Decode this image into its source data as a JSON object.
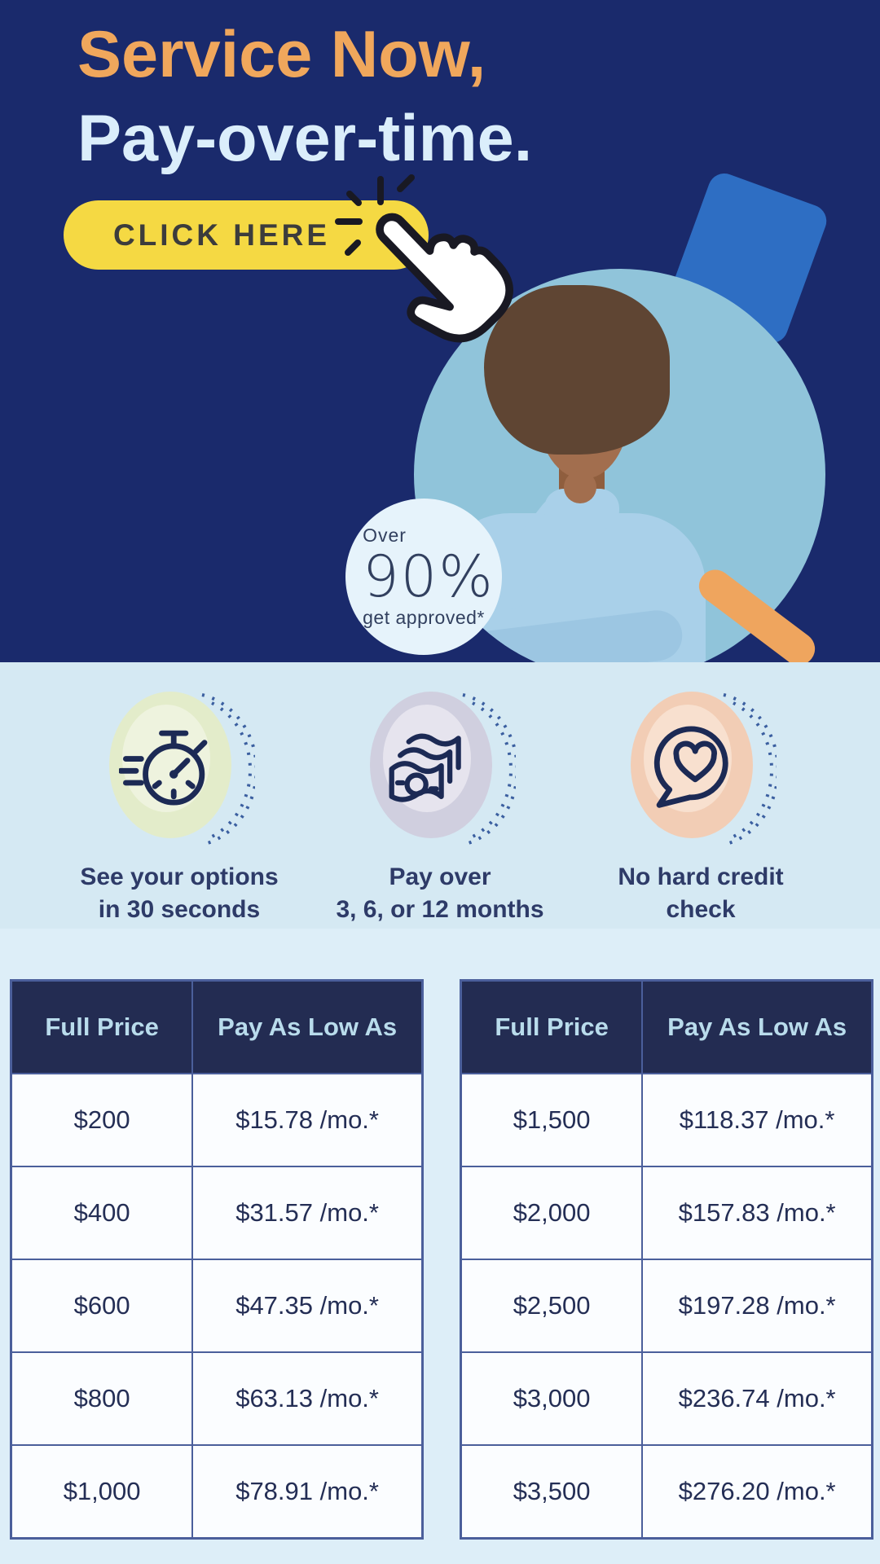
{
  "hero": {
    "title_line1": "Service Now,",
    "title_line2": "Pay-over-time.",
    "cta_label": "CLICK HERE",
    "badge": {
      "line1": "Over",
      "value": "90%",
      "line2": "get approved*"
    }
  },
  "features": [
    {
      "icon": "stopwatch-icon",
      "line1": "See your options",
      "line2": "in 30 seconds"
    },
    {
      "icon": "banknotes-icon",
      "line1": "Pay over",
      "line2": "3, 6, or 12 months"
    },
    {
      "icon": "heart-speech-bubble-icon",
      "line1": "No hard credit",
      "line2": "check"
    }
  ],
  "pricing_tables": {
    "left": {
      "headers": [
        "Full Price",
        "Pay As Low As"
      ],
      "rows": [
        [
          "$200",
          "$15.78 /mo.*"
        ],
        [
          "$400",
          "$31.57 /mo.*"
        ],
        [
          "$600",
          "$47.35 /mo.*"
        ],
        [
          "$800",
          "$63.13 /mo.*"
        ],
        [
          "$1,000",
          "$78.91 /mo.*"
        ]
      ]
    },
    "right": {
      "headers": [
        "Full Price",
        "Pay As Low As"
      ],
      "rows": [
        [
          "$1,500",
          "$118.37 /mo.*"
        ],
        [
          "$2,000",
          "$157.83 /mo.*"
        ],
        [
          "$2,500",
          "$197.28 /mo.*"
        ],
        [
          "$3,000",
          "$236.74 /mo.*"
        ],
        [
          "$3,500",
          "$276.20 /mo.*"
        ]
      ]
    }
  },
  "colors": {
    "hero_bg": "#1a2a6c",
    "title_accent": "#f0a75c",
    "title_light": "#dbeefb",
    "cta_bg": "#f5d943",
    "cta_text": "#3c3c3c",
    "photo_circle": "#90c4da",
    "wedge_blue": "#2e6ec3",
    "stick_orange": "#efa55e",
    "features_bg": "#d5e9f3",
    "tables_bg": "#ddeef8",
    "table_header_bg": "#232c52",
    "table_header_text": "#b9dcec",
    "table_border": "#4b5f9b",
    "text_navy": "#2e3b68"
  }
}
